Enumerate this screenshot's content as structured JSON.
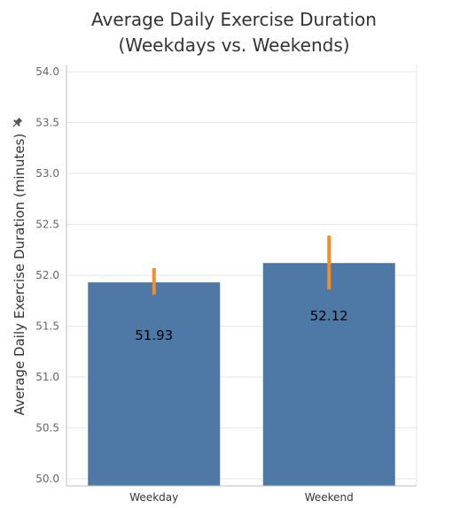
{
  "chart_data": {
    "type": "bar",
    "title": [
      "Average Daily Exercise Duration",
      "(Weekdays vs. Weekends)"
    ],
    "ylabel": "Average Daily Exercise Duration (minutes)",
    "xlabel": "",
    "categories": [
      "Weekday",
      "Weekend"
    ],
    "values": [
      51.93,
      52.12
    ],
    "value_labels": [
      "51.93",
      "52.12"
    ],
    "error_bars": [
      {
        "low": 51.81,
        "high": 52.07
      },
      {
        "low": 51.86,
        "high": 52.39
      }
    ],
    "ylim": [
      50.0,
      54.0
    ],
    "yticks": [
      "50.0",
      "50.5",
      "51.0",
      "51.5",
      "52.0",
      "52.5",
      "53.0",
      "53.5",
      "54.0"
    ],
    "grid": true,
    "colors": {
      "bar": "#4e79a7",
      "error_bar": "#f28e2b",
      "grid": "#e6e6e6",
      "axis": "#bfbfbf"
    }
  },
  "icons": {
    "pin": "pin-icon"
  }
}
